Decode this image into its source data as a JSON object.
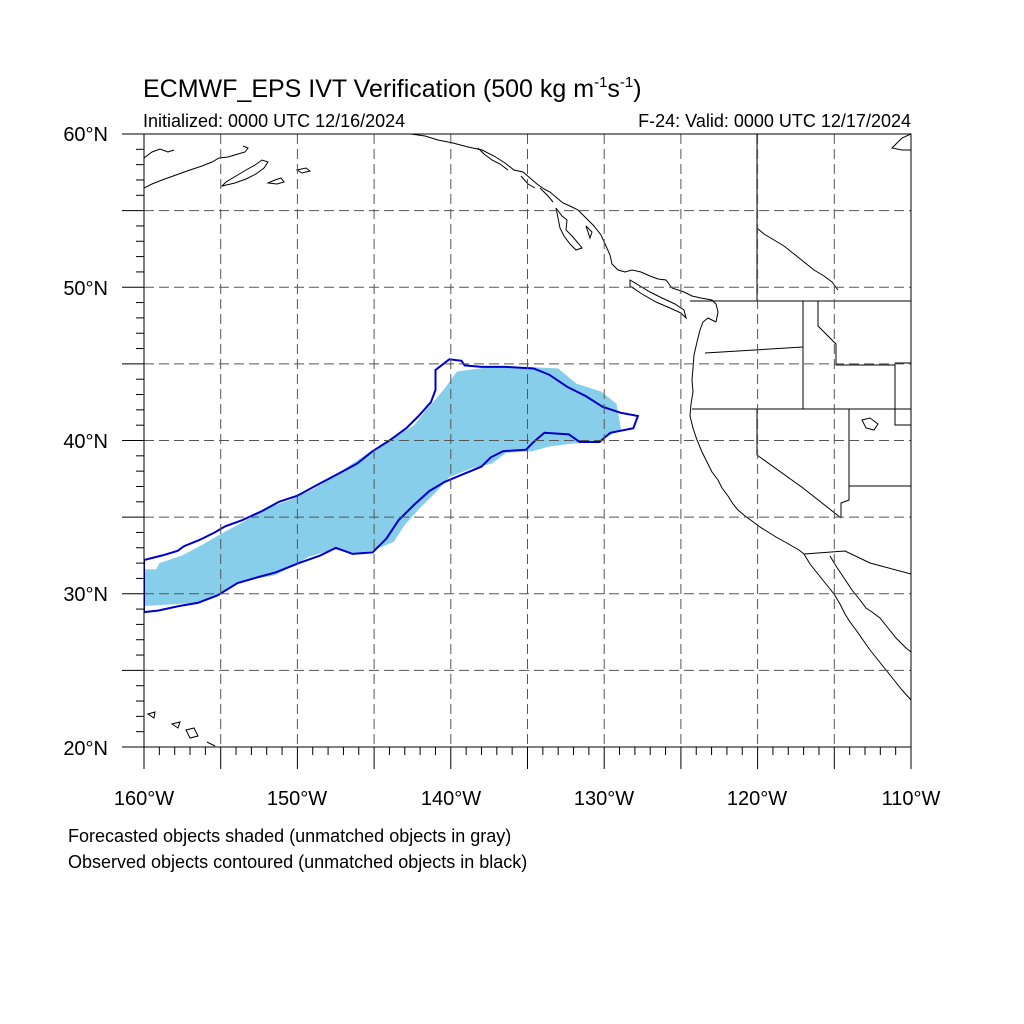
{
  "title": {
    "main": "ECMWF_EPS IVT Verification (500 kg m",
    "exp1": "-1",
    "mid": "s",
    "exp2": "-1",
    "close": ")"
  },
  "initialized": "Initialized: 0000 UTC 12/16/2024",
  "valid": "F-24: Valid: 0000 UTC 12/17/2024",
  "lat_labels": [
    "60°N",
    "50°N",
    "40°N",
    "30°N",
    "20°N"
  ],
  "lon_labels": [
    "160°W",
    "150°W",
    "140°W",
    "130°W",
    "120°W",
    "110°W"
  ],
  "notes": [
    "Forecasted objects shaded (unmatched objects in gray)",
    "Observed objects contoured (unmatched objects in black)"
  ],
  "map_extent": {
    "lon": [
      -160,
      -110
    ],
    "lat": [
      20,
      60
    ]
  },
  "colors": {
    "forecast_fill": "#87ceeb",
    "observed_contour": "#0000cd",
    "coastline": "#000000",
    "grid": "#555555"
  },
  "forecast_object": [
    [
      -160.0,
      31.6
    ],
    [
      -159.2,
      31.6
    ],
    [
      -159.0,
      32.0
    ],
    [
      -157.5,
      32.5
    ],
    [
      -156.2,
      33.2
    ],
    [
      -155.0,
      33.9
    ],
    [
      -153.5,
      34.7
    ],
    [
      -152.0,
      35.6
    ],
    [
      -150.5,
      36.1
    ],
    [
      -149.0,
      36.8
    ],
    [
      -147.7,
      37.6
    ],
    [
      -146.4,
      38.5
    ],
    [
      -145.2,
      39.3
    ],
    [
      -143.8,
      40.1
    ],
    [
      -142.4,
      41.0
    ],
    [
      -141.6,
      42.0
    ],
    [
      -140.9,
      42.8
    ],
    [
      -140.4,
      43.4
    ],
    [
      -139.6,
      44.5
    ],
    [
      -137.3,
      44.8
    ],
    [
      -135.0,
      44.8
    ],
    [
      -133.0,
      44.7
    ],
    [
      -131.8,
      43.7
    ],
    [
      -130.2,
      43.2
    ],
    [
      -129.2,
      42.4
    ],
    [
      -128.9,
      40.7
    ],
    [
      -130.5,
      39.9
    ],
    [
      -132.1,
      39.8
    ],
    [
      -133.6,
      39.6
    ],
    [
      -134.7,
      39.3
    ],
    [
      -136.4,
      39.2
    ],
    [
      -137.3,
      38.5
    ],
    [
      -138.6,
      38.2
    ],
    [
      -140.1,
      37.6
    ],
    [
      -141.0,
      36.6
    ],
    [
      -142.0,
      35.6
    ],
    [
      -143.0,
      34.5
    ],
    [
      -143.7,
      33.4
    ],
    [
      -145.1,
      32.8
    ],
    [
      -146.3,
      32.6
    ],
    [
      -147.6,
      32.9
    ],
    [
      -149.3,
      32.4
    ],
    [
      -150.3,
      31.8
    ],
    [
      -151.5,
      31.2
    ],
    [
      -153.8,
      30.8
    ],
    [
      -155.3,
      29.9
    ],
    [
      -156.6,
      29.4
    ],
    [
      -158.3,
      29.3
    ],
    [
      -160.0,
      29.2
    ]
  ],
  "observed_contour": [
    [
      -160.0,
      32.2
    ],
    [
      -158.8,
      32.5
    ],
    [
      -157.8,
      32.8
    ],
    [
      -157.4,
      33.1
    ],
    [
      -156.4,
      33.5
    ],
    [
      -155.4,
      34.0
    ],
    [
      -154.7,
      34.4
    ],
    [
      -153.6,
      34.8
    ],
    [
      -152.3,
      35.4
    ],
    [
      -151.2,
      36.0
    ],
    [
      -150.0,
      36.4
    ],
    [
      -148.7,
      37.1
    ],
    [
      -147.4,
      37.8
    ],
    [
      -146.1,
      38.5
    ],
    [
      -145.1,
      39.3
    ],
    [
      -144.0,
      40.0
    ],
    [
      -142.9,
      40.8
    ],
    [
      -142.1,
      41.6
    ],
    [
      -141.3,
      42.5
    ],
    [
      -141.0,
      43.3
    ],
    [
      -141.0,
      44.6
    ],
    [
      -140.1,
      45.3
    ],
    [
      -139.3,
      45.2
    ],
    [
      -139.1,
      44.9
    ],
    [
      -138.0,
      44.8
    ],
    [
      -136.4,
      44.8
    ],
    [
      -134.6,
      44.7
    ],
    [
      -133.6,
      44.3
    ],
    [
      -132.4,
      43.5
    ],
    [
      -131.2,
      42.9
    ],
    [
      -130.1,
      42.2
    ],
    [
      -128.9,
      41.8
    ],
    [
      -127.8,
      41.6
    ],
    [
      -128.1,
      40.8
    ],
    [
      -129.6,
      40.5
    ],
    [
      -130.3,
      39.9
    ],
    [
      -131.6,
      39.9
    ],
    [
      -132.3,
      40.4
    ],
    [
      -133.9,
      40.5
    ],
    [
      -134.6,
      39.9
    ],
    [
      -135.1,
      39.4
    ],
    [
      -136.6,
      39.3
    ],
    [
      -137.4,
      38.9
    ],
    [
      -138.0,
      38.3
    ],
    [
      -139.2,
      37.8
    ],
    [
      -140.4,
      37.3
    ],
    [
      -141.4,
      36.7
    ],
    [
      -142.4,
      35.8
    ],
    [
      -143.4,
      34.8
    ],
    [
      -144.2,
      33.6
    ],
    [
      -145.1,
      32.7
    ],
    [
      -146.4,
      32.6
    ],
    [
      -147.5,
      33.0
    ],
    [
      -148.5,
      32.5
    ],
    [
      -149.9,
      32.0
    ],
    [
      -151.4,
      31.4
    ],
    [
      -152.5,
      31.1
    ],
    [
      -153.9,
      30.7
    ],
    [
      -155.2,
      29.9
    ],
    [
      -156.5,
      29.4
    ],
    [
      -157.7,
      29.2
    ],
    [
      -159.1,
      28.9
    ],
    [
      -160.0,
      28.8
    ]
  ]
}
